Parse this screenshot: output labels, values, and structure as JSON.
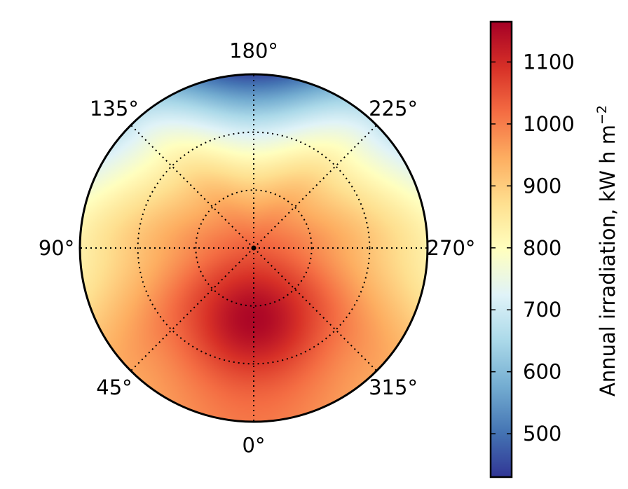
{
  "chart_data": {
    "type": "heatmap",
    "projection": "polar",
    "title": "",
    "angular_ticks": [
      {
        "angle_deg": 0,
        "label": "0°"
      },
      {
        "angle_deg": 45,
        "label": "45°"
      },
      {
        "angle_deg": 90,
        "label": "90°"
      },
      {
        "angle_deg": 135,
        "label": "135°"
      },
      {
        "angle_deg": 180,
        "label": "180°"
      },
      {
        "angle_deg": 225,
        "label": "225°"
      },
      {
        "angle_deg": 270,
        "label": "270°"
      },
      {
        "angle_deg": 315,
        "label": "315°"
      }
    ],
    "radial_gridlines": [
      1,
      2,
      3
    ],
    "radial_max": 3,
    "grid": true,
    "field": {
      "max_value": 1165,
      "max_position": {
        "angle_deg": 0,
        "radius": 1.25
      },
      "value_at_edge": {
        "0": 1000,
        "45": 950,
        "90": 830,
        "135": 690,
        "180": 450,
        "225": 690,
        "270": 830,
        "315": 950
      },
      "value_at_center": 1000
    },
    "colorbar": {
      "label": "Annual irradiation, kW h m",
      "label_superscript": "−2",
      "range": [
        430,
        1165
      ],
      "ticks": [
        500,
        600,
        700,
        800,
        900,
        1000,
        1100
      ],
      "tick_labels": [
        "500",
        "600",
        "700",
        "800",
        "900",
        "1000",
        "1100"
      ],
      "colormap": "RdYlBu_r"
    },
    "colormap_stops": [
      "#313695",
      "#4575b4",
      "#74add1",
      "#abd9e9",
      "#e0f3f8",
      "#ffffbf",
      "#fee090",
      "#fdae61",
      "#f46d43",
      "#d73027",
      "#a50026"
    ]
  }
}
